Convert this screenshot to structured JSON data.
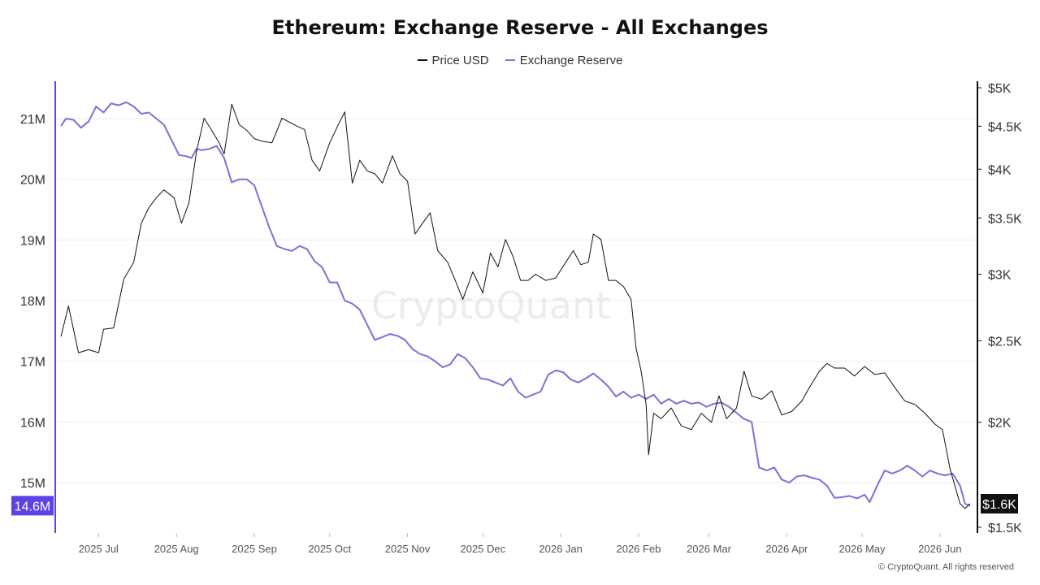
{
  "footer": "© CryptoQuant. All rights reserved",
  "watermark": "CryptoQuant",
  "colors": {
    "price": "#111111",
    "reserve": "#7f6fd8",
    "reserve_badge": "#5b43e6",
    "price_badge": "#111111",
    "grid": "#eeeeee"
  },
  "chart_data": {
    "type": "line",
    "title": "Ethereum: Exchange Reserve - All Exchanges",
    "legend_position": "top-center",
    "grid": true,
    "x_ticks": [
      "2025 Jul",
      "2025 Aug",
      "2025 Sep",
      "2025 Oct",
      "2025 Nov",
      "2025 Dec",
      "2026 Jan",
      "2026 Feb",
      "2026 Mar",
      "2026 Apr",
      "2026 May",
      "2026 Jun"
    ],
    "x_range": [
      "2025-06-16",
      "2026-06-13"
    ],
    "y_left": {
      "ticks": [
        "21M",
        "20M",
        "19M",
        "18M",
        "17M",
        "16M",
        "15M"
      ],
      "ylim": [
        14.2,
        21.6
      ],
      "unit": "M ETH"
    },
    "y_right": {
      "ticks": [
        "$5K",
        "$4.5K",
        "$4K",
        "$3.5K",
        "$3K",
        "$2.5K",
        "$2K",
        "$1.5K"
      ],
      "scale": "log",
      "ylim": [
        1500,
        5000
      ],
      "unit": "USD"
    },
    "current_labels": {
      "reserve": "14.6M",
      "price": "$1.6K"
    },
    "series": [
      {
        "name": "Price USD",
        "axis": "right",
        "points": [
          [
            "2025-06-16",
            2530
          ],
          [
            "2025-06-19",
            2750
          ],
          [
            "2025-06-23",
            2420
          ],
          [
            "2025-06-27",
            2440
          ],
          [
            "2025-07-01",
            2420
          ],
          [
            "2025-07-03",
            2580
          ],
          [
            "2025-07-07",
            2590
          ],
          [
            "2025-07-11",
            2960
          ],
          [
            "2025-07-15",
            3100
          ],
          [
            "2025-07-18",
            3450
          ],
          [
            "2025-07-21",
            3600
          ],
          [
            "2025-07-24",
            3700
          ],
          [
            "2025-07-27",
            3780
          ],
          [
            "2025-07-31",
            3700
          ],
          [
            "2025-08-03",
            3450
          ],
          [
            "2025-08-06",
            3650
          ],
          [
            "2025-08-09",
            4200
          ],
          [
            "2025-08-12",
            4600
          ],
          [
            "2025-08-15",
            4450
          ],
          [
            "2025-08-18",
            4300
          ],
          [
            "2025-08-20",
            4170
          ],
          [
            "2025-08-23",
            4780
          ],
          [
            "2025-08-26",
            4520
          ],
          [
            "2025-08-29",
            4450
          ],
          [
            "2025-09-01",
            4350
          ],
          [
            "2025-09-04",
            4320
          ],
          [
            "2025-09-08",
            4300
          ],
          [
            "2025-09-12",
            4600
          ],
          [
            "2025-09-15",
            4550
          ],
          [
            "2025-09-18",
            4500
          ],
          [
            "2025-09-21",
            4460
          ],
          [
            "2025-09-24",
            4100
          ],
          [
            "2025-09-27",
            3980
          ],
          [
            "2025-10-01",
            4300
          ],
          [
            "2025-10-04",
            4490
          ],
          [
            "2025-10-07",
            4680
          ],
          [
            "2025-10-10",
            3850
          ],
          [
            "2025-10-13",
            4100
          ],
          [
            "2025-10-16",
            3980
          ],
          [
            "2025-10-19",
            3950
          ],
          [
            "2025-10-22",
            3850
          ],
          [
            "2025-10-26",
            4150
          ],
          [
            "2025-10-29",
            3950
          ],
          [
            "2025-11-01",
            3870
          ],
          [
            "2025-11-04",
            3350
          ],
          [
            "2025-11-07",
            3450
          ],
          [
            "2025-11-10",
            3550
          ],
          [
            "2025-11-13",
            3200
          ],
          [
            "2025-11-17",
            3100
          ],
          [
            "2025-11-20",
            2950
          ],
          [
            "2025-11-23",
            2800
          ],
          [
            "2025-11-27",
            3020
          ],
          [
            "2025-12-01",
            2850
          ],
          [
            "2025-12-04",
            3180
          ],
          [
            "2025-12-07",
            3060
          ],
          [
            "2025-12-10",
            3300
          ],
          [
            "2025-12-13",
            3150
          ],
          [
            "2025-12-16",
            2950
          ],
          [
            "2025-12-19",
            2950
          ],
          [
            "2025-12-22",
            3000
          ],
          [
            "2025-12-26",
            2950
          ],
          [
            "2025-12-30",
            2970
          ],
          [
            "2026-01-03",
            3100
          ],
          [
            "2026-01-06",
            3200
          ],
          [
            "2026-01-09",
            3080
          ],
          [
            "2026-01-12",
            3100
          ],
          [
            "2026-01-14",
            3350
          ],
          [
            "2026-01-17",
            3300
          ],
          [
            "2026-01-20",
            2950
          ],
          [
            "2026-01-23",
            2950
          ],
          [
            "2026-01-26",
            2900
          ],
          [
            "2026-01-29",
            2800
          ],
          [
            "2026-01-31",
            2450
          ],
          [
            "2026-02-02",
            2300
          ],
          [
            "2026-02-04",
            2100
          ],
          [
            "2026-02-05",
            1830
          ],
          [
            "2026-02-07",
            2050
          ],
          [
            "2026-02-10",
            2020
          ],
          [
            "2026-02-14",
            2080
          ],
          [
            "2026-02-18",
            1980
          ],
          [
            "2026-02-22",
            1960
          ],
          [
            "2026-02-26",
            2050
          ],
          [
            "2026-03-02",
            2000
          ],
          [
            "2026-03-05",
            2150
          ],
          [
            "2026-03-08",
            2020
          ],
          [
            "2026-03-12",
            2080
          ],
          [
            "2026-03-15",
            2300
          ],
          [
            "2026-03-18",
            2150
          ],
          [
            "2026-03-22",
            2130
          ],
          [
            "2026-03-26",
            2180
          ],
          [
            "2026-03-30",
            2040
          ],
          [
            "2026-04-03",
            2060
          ],
          [
            "2026-04-07",
            2120
          ],
          [
            "2026-04-10",
            2200
          ],
          [
            "2026-04-14",
            2300
          ],
          [
            "2026-04-17",
            2350
          ],
          [
            "2026-04-20",
            2320
          ],
          [
            "2026-04-24",
            2320
          ],
          [
            "2026-04-28",
            2270
          ],
          [
            "2026-05-02",
            2330
          ],
          [
            "2026-05-06",
            2280
          ],
          [
            "2026-05-10",
            2290
          ],
          [
            "2026-05-14",
            2200
          ],
          [
            "2026-05-18",
            2120
          ],
          [
            "2026-05-22",
            2100
          ],
          [
            "2026-05-26",
            2050
          ],
          [
            "2026-05-30",
            1990
          ],
          [
            "2026-06-02",
            1960
          ],
          [
            "2026-06-05",
            1760
          ],
          [
            "2026-06-09",
            1600
          ],
          [
            "2026-06-11",
            1580
          ],
          [
            "2026-06-13",
            1600
          ]
        ]
      },
      {
        "name": "Exchange Reserve",
        "axis": "left",
        "points": [
          [
            "2025-06-16",
            20.88
          ],
          [
            "2025-06-18",
            21.0
          ],
          [
            "2025-06-21",
            20.98
          ],
          [
            "2025-06-24",
            20.85
          ],
          [
            "2025-06-27",
            20.95
          ],
          [
            "2025-06-30",
            21.2
          ],
          [
            "2025-07-03",
            21.1
          ],
          [
            "2025-07-06",
            21.25
          ],
          [
            "2025-07-09",
            21.22
          ],
          [
            "2025-07-12",
            21.27
          ],
          [
            "2025-07-15",
            21.2
          ],
          [
            "2025-07-18",
            21.08
          ],
          [
            "2025-07-21",
            21.1
          ],
          [
            "2025-07-24",
            21.0
          ],
          [
            "2025-07-27",
            20.9
          ],
          [
            "2025-07-30",
            20.65
          ],
          [
            "2025-08-02",
            20.4
          ],
          [
            "2025-08-05",
            20.38
          ],
          [
            "2025-08-07",
            20.35
          ],
          [
            "2025-08-09",
            20.5
          ],
          [
            "2025-08-11",
            20.48
          ],
          [
            "2025-08-14",
            20.5
          ],
          [
            "2025-08-17",
            20.55
          ],
          [
            "2025-08-20",
            20.35
          ],
          [
            "2025-08-23",
            19.95
          ],
          [
            "2025-08-26",
            20.0
          ],
          [
            "2025-08-29",
            20.0
          ],
          [
            "2025-09-01",
            19.9
          ],
          [
            "2025-09-04",
            19.55
          ],
          [
            "2025-09-07",
            19.2
          ],
          [
            "2025-09-10",
            18.9
          ],
          [
            "2025-09-13",
            18.85
          ],
          [
            "2025-09-16",
            18.82
          ],
          [
            "2025-09-19",
            18.9
          ],
          [
            "2025-09-22",
            18.85
          ],
          [
            "2025-09-25",
            18.65
          ],
          [
            "2025-09-28",
            18.55
          ],
          [
            "2025-10-01",
            18.3
          ],
          [
            "2025-10-04",
            18.3
          ],
          [
            "2025-10-07",
            18.0
          ],
          [
            "2025-10-10",
            17.95
          ],
          [
            "2025-10-13",
            17.85
          ],
          [
            "2025-10-16",
            17.6
          ],
          [
            "2025-10-19",
            17.35
          ],
          [
            "2025-10-22",
            17.4
          ],
          [
            "2025-10-25",
            17.45
          ],
          [
            "2025-10-28",
            17.42
          ],
          [
            "2025-10-31",
            17.35
          ],
          [
            "2025-11-03",
            17.2
          ],
          [
            "2025-11-06",
            17.12
          ],
          [
            "2025-11-09",
            17.08
          ],
          [
            "2025-11-12",
            17.0
          ],
          [
            "2025-11-15",
            16.9
          ],
          [
            "2025-11-18",
            16.95
          ],
          [
            "2025-11-21",
            17.12
          ],
          [
            "2025-11-24",
            17.05
          ],
          [
            "2025-11-27",
            16.9
          ],
          [
            "2025-11-30",
            16.72
          ],
          [
            "2025-12-03",
            16.7
          ],
          [
            "2025-12-06",
            16.65
          ],
          [
            "2025-12-09",
            16.6
          ],
          [
            "2025-12-12",
            16.72
          ],
          [
            "2025-12-15",
            16.5
          ],
          [
            "2025-12-18",
            16.4
          ],
          [
            "2025-12-21",
            16.45
          ],
          [
            "2025-12-24",
            16.5
          ],
          [
            "2025-12-27",
            16.78
          ],
          [
            "2025-12-30",
            16.85
          ],
          [
            "2026-01-02",
            16.82
          ],
          [
            "2026-01-05",
            16.7
          ],
          [
            "2026-01-08",
            16.65
          ],
          [
            "2026-01-11",
            16.72
          ],
          [
            "2026-01-14",
            16.8
          ],
          [
            "2026-01-17",
            16.7
          ],
          [
            "2026-01-20",
            16.58
          ],
          [
            "2026-01-23",
            16.42
          ],
          [
            "2026-01-26",
            16.5
          ],
          [
            "2026-01-29",
            16.4
          ],
          [
            "2026-02-01",
            16.45
          ],
          [
            "2026-02-04",
            16.38
          ],
          [
            "2026-02-07",
            16.45
          ],
          [
            "2026-02-10",
            16.3
          ],
          [
            "2026-02-13",
            16.38
          ],
          [
            "2026-02-16",
            16.3
          ],
          [
            "2026-02-19",
            16.35
          ],
          [
            "2026-02-22",
            16.3
          ],
          [
            "2026-02-25",
            16.32
          ],
          [
            "2026-02-28",
            16.25
          ],
          [
            "2026-03-03",
            16.3
          ],
          [
            "2026-03-06",
            16.32
          ],
          [
            "2026-03-09",
            16.25
          ],
          [
            "2026-03-12",
            16.15
          ],
          [
            "2026-03-15",
            16.05
          ],
          [
            "2026-03-18",
            16.0
          ],
          [
            "2026-03-21",
            15.25
          ],
          [
            "2026-03-24",
            15.2
          ],
          [
            "2026-03-27",
            15.25
          ],
          [
            "2026-03-30",
            15.05
          ],
          [
            "2026-04-02",
            15.0
          ],
          [
            "2026-04-05",
            15.1
          ],
          [
            "2026-04-08",
            15.12
          ],
          [
            "2026-04-11",
            15.08
          ],
          [
            "2026-04-14",
            15.05
          ],
          [
            "2026-04-17",
            14.95
          ],
          [
            "2026-04-20",
            14.75
          ],
          [
            "2026-04-23",
            14.76
          ],
          [
            "2026-04-26",
            14.78
          ],
          [
            "2026-04-29",
            14.74
          ],
          [
            "2026-05-02",
            14.8
          ],
          [
            "2026-05-04",
            14.68
          ],
          [
            "2026-05-07",
            14.95
          ],
          [
            "2026-05-10",
            15.2
          ],
          [
            "2026-05-13",
            15.15
          ],
          [
            "2026-05-16",
            15.2
          ],
          [
            "2026-05-19",
            15.28
          ],
          [
            "2026-05-22",
            15.2
          ],
          [
            "2026-05-25",
            15.1
          ],
          [
            "2026-05-28",
            15.2
          ],
          [
            "2026-05-31",
            15.15
          ],
          [
            "2026-06-03",
            15.12
          ],
          [
            "2026-06-06",
            15.15
          ],
          [
            "2026-06-09",
            14.95
          ],
          [
            "2026-06-11",
            14.65
          ],
          [
            "2026-06-13",
            14.62
          ]
        ]
      }
    ]
  }
}
